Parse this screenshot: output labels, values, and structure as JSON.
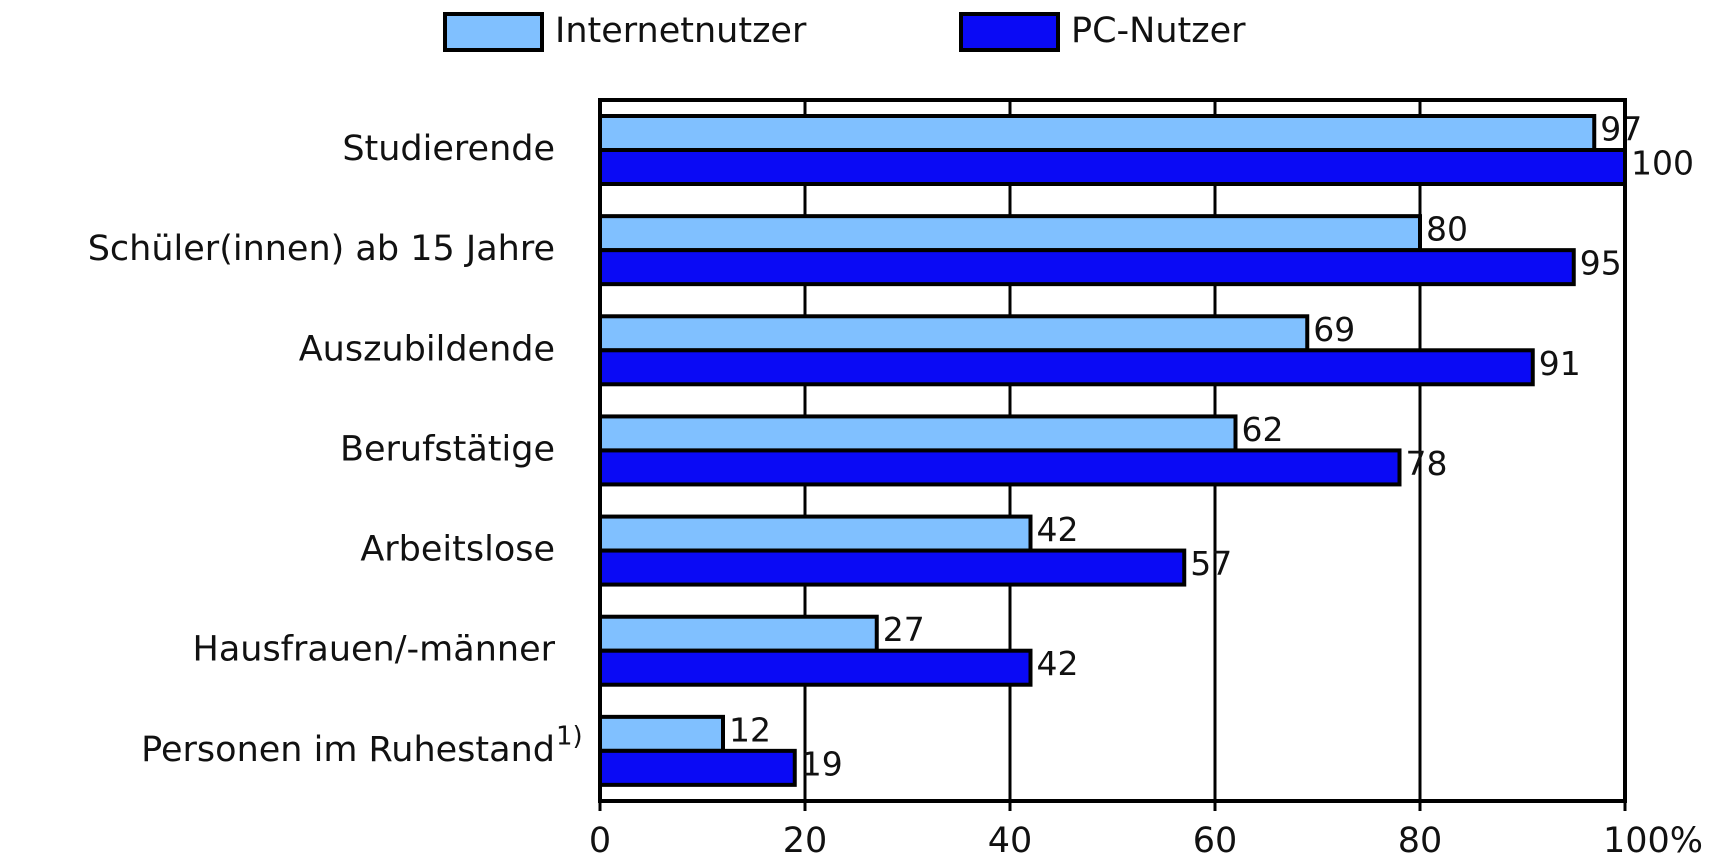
{
  "chart_data": {
    "type": "bar",
    "orientation": "horizontal",
    "categories": [
      "Studierende",
      "Schüler(innen) ab 15 Jahre",
      "Auszubildende",
      "Berufstätige",
      "Arbeitslose",
      "Hausfrauen/-männer",
      "Personen im Ruhestand"
    ],
    "series": [
      {
        "name": "Internetnutzer",
        "color": "#80c0ff",
        "values": [
          97,
          80,
          69,
          62,
          42,
          27,
          12
        ]
      },
      {
        "name": "PC-Nutzer",
        "color": "#0a0af5",
        "values": [
          100,
          95,
          91,
          78,
          57,
          42,
          19
        ]
      }
    ],
    "annotations": [
      "1)"
    ],
    "xlim": [
      0,
      100
    ],
    "xticks": [
      0,
      20,
      40,
      60,
      80,
      {
        "value": 100,
        "label": "100%"
      }
    ],
    "grid": true
  }
}
